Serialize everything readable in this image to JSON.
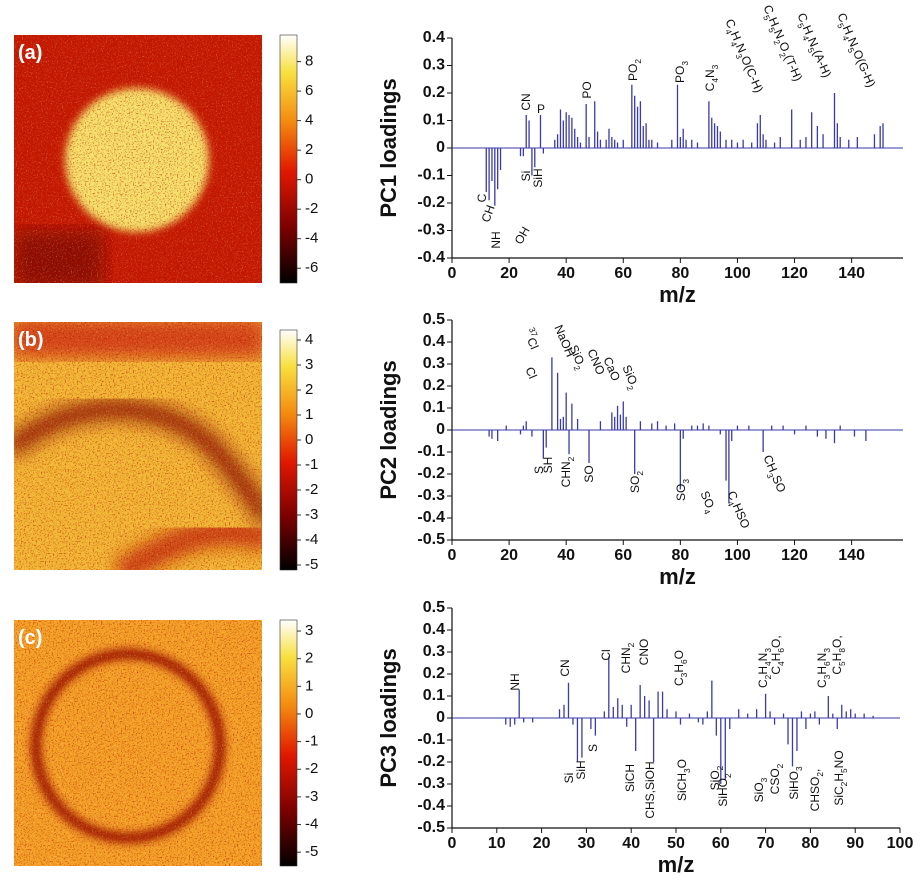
{
  "chart_data": [
    {
      "type": "image",
      "label": "(a)",
      "clim": [
        -7.0,
        9.8
      ],
      "cticks": [
        8,
        6,
        4,
        2,
        0,
        -2,
        -4,
        -6
      ]
    },
    {
      "type": "stem",
      "color": "#3a3aa8",
      "ylabel": "PC1 loadings",
      "xlabel": "m/z",
      "xlim": [
        0,
        158
      ],
      "ylim": [
        -0.4,
        0.4
      ],
      "xticks": [
        0,
        20,
        40,
        60,
        80,
        100,
        120,
        140
      ],
      "yticks": [
        -0.4,
        -0.3,
        -0.2,
        -0.1,
        0,
        0.1,
        0.2,
        0.3,
        0.4
      ],
      "x": [
        12,
        13,
        14,
        15,
        16,
        17,
        24,
        25,
        26,
        27,
        28,
        29,
        31,
        32,
        36,
        37,
        38,
        39,
        40,
        41,
        42,
        43,
        44,
        45,
        47,
        48,
        50,
        51,
        52,
        54,
        55,
        56,
        57,
        58,
        60,
        63,
        64,
        65,
        66,
        67,
        68,
        69,
        70,
        72,
        77,
        79,
        80,
        81,
        82,
        84,
        86,
        90,
        91,
        92,
        93,
        94,
        96,
        98,
        100,
        102,
        105,
        107,
        108,
        109,
        110,
        113,
        115,
        119,
        122,
        124,
        126,
        128,
        130,
        134,
        135,
        136,
        139,
        142,
        148,
        150,
        151
      ],
      "values": [
        -0.16,
        -0.19,
        -0.12,
        -0.21,
        -0.15,
        -0.08,
        -0.03,
        -0.03,
        0.12,
        0.1,
        -0.1,
        -0.07,
        0.12,
        -0.02,
        0.03,
        0.05,
        0.14,
        0.1,
        0.13,
        0.12,
        0.11,
        0.07,
        0.04,
        0.02,
        0.16,
        0.04,
        0.17,
        0.06,
        0.03,
        0.03,
        0.07,
        0.04,
        0.03,
        0.02,
        0.03,
        0.23,
        0.19,
        0.15,
        0.17,
        0.08,
        0.09,
        0.03,
        0.03,
        0.02,
        0.03,
        0.23,
        0.04,
        0.07,
        0.03,
        0.03,
        0.02,
        0.17,
        0.11,
        0.09,
        0.08,
        0.06,
        0.03,
        0.03,
        0.02,
        0.03,
        0.02,
        0.09,
        0.12,
        0.05,
        0.03,
        0.02,
        0.04,
        0.14,
        0.03,
        0.04,
        0.13,
        0.08,
        0.05,
        0.2,
        0.09,
        0.04,
        0.03,
        0.04,
        0.05,
        0.08,
        0.09
      ],
      "annotations": [
        "CN",
        "P",
        "C",
        "CH",
        "NH",
        "OH",
        "Si",
        "SiH",
        "PO",
        "PO2",
        "PO3",
        "C4N3",
        "C4H4N3O(C-H)",
        "C5H5N2O2(T-H)",
        "C5H4N5(A-H)",
        "C5H4N5O(G-H)"
      ]
    },
    {
      "type": "image",
      "label": "(b)",
      "clim": [
        -5.2,
        4.4
      ],
      "cticks": [
        4,
        3,
        2,
        1,
        0,
        -1,
        -2,
        -3,
        -4,
        -5
      ]
    },
    {
      "type": "stem",
      "color": "#3a3aa8",
      "ylabel": "PC2 loadings",
      "xlabel": "m/z",
      "xlim": [
        0,
        158
      ],
      "ylim": [
        -0.5,
        0.5
      ],
      "xticks": [
        0,
        20,
        40,
        60,
        80,
        100,
        120,
        140
      ],
      "yticks": [
        -0.5,
        -0.4,
        -0.3,
        -0.2,
        -0.1,
        0,
        0.1,
        0.2,
        0.3,
        0.4,
        0.5
      ],
      "x": [
        13,
        14,
        16,
        19,
        24,
        25,
        26,
        28,
        32,
        33,
        35,
        37,
        38,
        39,
        40,
        41,
        42,
        44,
        48,
        52,
        56,
        57,
        58,
        59,
        60,
        61,
        64,
        66,
        70,
        72,
        75,
        78,
        80,
        81,
        84,
        86,
        88,
        90,
        94,
        96,
        97,
        98,
        100,
        104,
        109,
        112,
        116,
        120,
        124,
        128,
        131,
        134,
        136,
        141,
        145
      ],
      "values": [
        -0.03,
        -0.04,
        -0.05,
        0.02,
        -0.02,
        0.02,
        0.04,
        -0.03,
        -0.13,
        -0.08,
        0.33,
        0.26,
        0.05,
        0.06,
        0.17,
        -0.11,
        0.12,
        0.05,
        -0.15,
        0.04,
        0.08,
        0.06,
        0.11,
        0.07,
        0.13,
        0.06,
        -0.2,
        0.04,
        0.03,
        0.04,
        0.02,
        0.03,
        -0.27,
        -0.04,
        0.02,
        0.02,
        0.03,
        0.02,
        -0.02,
        -0.23,
        -0.33,
        -0.05,
        0.02,
        0.02,
        -0.1,
        0.02,
        0.02,
        -0.02,
        0.02,
        -0.03,
        -0.04,
        -0.06,
        0.02,
        -0.03,
        -0.05
      ],
      "annotations": [
        "37Cl",
        "Cl",
        "NaOH",
        "SiO2",
        "CNO",
        "CaO",
        "SiO2",
        "S",
        "SH",
        "CHN2",
        "SO",
        "SO2",
        "SO3",
        "SO4",
        "C4HSO",
        "CH3SO"
      ]
    },
    {
      "type": "image",
      "label": "(c)",
      "clim": [
        -5.5,
        3.4
      ],
      "cticks": [
        3,
        2,
        1,
        0,
        -1,
        -2,
        -3,
        -4,
        -5
      ]
    },
    {
      "type": "stem",
      "color": "#3a3aa8",
      "ylabel": "PC3 loadings",
      "xlabel": "m/z",
      "xlim": [
        0,
        100
      ],
      "ylim": [
        -0.5,
        0.5
      ],
      "xticks": [
        0,
        10,
        20,
        30,
        40,
        50,
        60,
        70,
        80,
        90,
        100
      ],
      "yticks": [
        -0.5,
        -0.4,
        -0.3,
        -0.2,
        -0.1,
        0,
        0.1,
        0.2,
        0.3,
        0.4,
        0.5
      ],
      "x": [
        12,
        13,
        14,
        15,
        16,
        18,
        24,
        25,
        26,
        27,
        28,
        29,
        31,
        32,
        34,
        35,
        36,
        37,
        38,
        39,
        40,
        41,
        42,
        43,
        44,
        45,
        46,
        47,
        48,
        50,
        51,
        53,
        55,
        56,
        57,
        58,
        59,
        60,
        61,
        62,
        64,
        66,
        68,
        70,
        71,
        72,
        74,
        75,
        76,
        77,
        78,
        79,
        80,
        81,
        82,
        84,
        85,
        86,
        87,
        88,
        89,
        90,
        92,
        94
      ],
      "values": [
        -0.03,
        -0.04,
        -0.03,
        0.13,
        -0.02,
        -0.02,
        0.04,
        0.06,
        0.16,
        -0.03,
        -0.2,
        -0.18,
        -0.05,
        -0.08,
        0.03,
        0.28,
        0.05,
        0.09,
        0.06,
        -0.04,
        0.06,
        -0.15,
        0.15,
        0.1,
        0.08,
        -0.2,
        0.12,
        0.12,
        0.04,
        0.03,
        -0.03,
        0.02,
        -0.02,
        -0.03,
        0.03,
        0.17,
        -0.08,
        -0.3,
        -0.28,
        -0.05,
        0.04,
        0.02,
        0.04,
        0.11,
        0.03,
        -0.03,
        0.02,
        -0.12,
        -0.22,
        -0.15,
        0.03,
        -0.05,
        0.02,
        0.03,
        -0.03,
        0.1,
        0.02,
        -0.05,
        0.06,
        0.03,
        0.04,
        0.02,
        0.02,
        0.01
      ],
      "annotations": [
        "NH",
        "CN",
        "Cl",
        "CHN2",
        "CNO",
        "C3H6O",
        "C4H6O,",
        "C2H4N3",
        "C3H6N3",
        "C5H8O,",
        "Si",
        "SiH",
        "S",
        "SiCH",
        "CHS,SiOH",
        "SiCH3O",
        "SiO2",
        "SiHO2",
        "SiO3",
        "CSO2",
        "SiHO3",
        "CHSO2,",
        "SiC2H5NO"
      ]
    }
  ]
}
